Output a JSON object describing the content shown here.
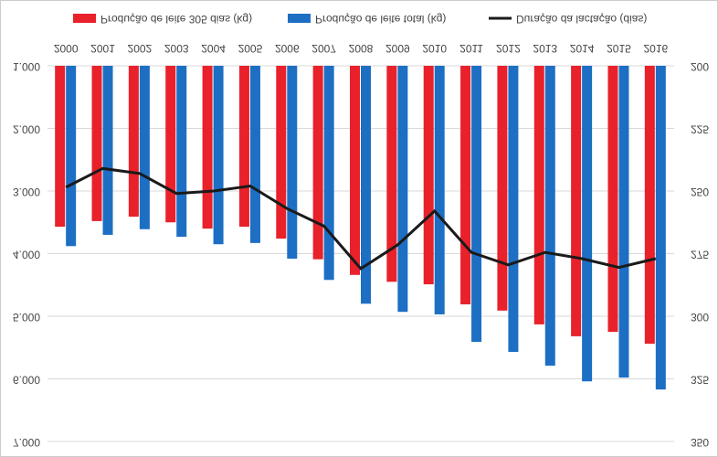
{
  "chart_data": {
    "type": "bar_line",
    "categories": [
      "2000",
      "2001",
      "2002",
      "2003",
      "2004",
      "2005",
      "2006",
      "2007",
      "2008",
      "2009",
      "2010",
      "2011",
      "2012",
      "2013",
      "2014",
      "2015",
      "2016"
    ],
    "series": [
      {
        "name": "Produção de leite 305 dias (kg)",
        "color": "#e8212b",
        "type": "bar",
        "values": [
          3570,
          3480,
          3410,
          3500,
          3600,
          3570,
          3760,
          4090,
          4340,
          4450,
          4490,
          4810,
          4910,
          5130,
          5320,
          5250,
          5440
        ]
      },
      {
        "name": "Produção de leite total (kg)",
        "color": "#1d6fc4",
        "type": "bar",
        "values": [
          3880,
          3700,
          3610,
          3730,
          3850,
          3830,
          4080,
          4420,
          4800,
          4930,
          4970,
          5410,
          5570,
          5790,
          6040,
          5980,
          6170
        ]
      },
      {
        "name": "Duração da lactação (dias)",
        "color": "#1a1a1a",
        "type": "line",
        "axis": "y2",
        "values": [
          248.5,
          241,
          243,
          251,
          250,
          248,
          257,
          264,
          281,
          271.5,
          258,
          274.5,
          279.5,
          274.5,
          277,
          280.5,
          277
        ]
      }
    ],
    "ylim": [
      1000,
      7000
    ],
    "yticks": [
      {
        "value": 1000,
        "label": "1.000"
      },
      {
        "value": 2000,
        "label": "2.000"
      },
      {
        "value": 3000,
        "label": "3.000"
      },
      {
        "value": 4000,
        "label": "4.000"
      },
      {
        "value": 5000,
        "label": "5.000"
      },
      {
        "value": 6000,
        "label": "6.000"
      },
      {
        "value": 7000,
        "label": "7.000"
      }
    ],
    "y2lim": [
      200,
      350
    ],
    "y2ticks": [
      200,
      225,
      250,
      275,
      300,
      325,
      350
    ],
    "grid": true,
    "legend": "bottom",
    "flipped_vertically": true
  }
}
